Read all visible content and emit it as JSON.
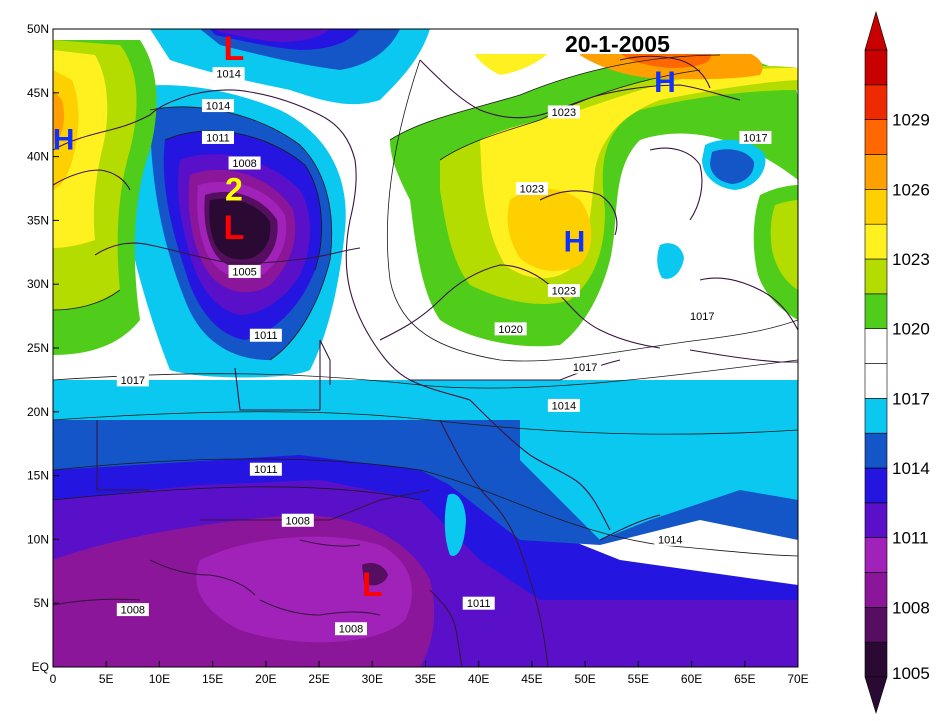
{
  "title": "20-1-2005",
  "x_ticks": [
    "0",
    "5E",
    "10E",
    "15E",
    "20E",
    "25E",
    "30E",
    "35E",
    "40E",
    "45E",
    "50E",
    "55E",
    "60E",
    "65E",
    "70E"
  ],
  "y_ticks": [
    "EQ",
    "5N",
    "10N",
    "15N",
    "20N",
    "25N",
    "30N",
    "35N",
    "40N",
    "45N",
    "50N"
  ],
  "colorbar": {
    "labels": [
      "1005",
      "1008",
      "1011",
      "1014",
      "1017",
      "1020",
      "1023",
      "1026",
      "1029"
    ],
    "colors": [
      "#2a0a32",
      "#560e60",
      "#8c169a",
      "#a022b8",
      "#5a10c8",
      "#2416e0",
      "#1456c8",
      "#0ac8ef",
      "#ffffff",
      "#ffffff",
      "#50cc1a",
      "#b4dc00",
      "#fff020",
      "#ffd000",
      "#ffa000",
      "#ff6800",
      "#f02a00",
      "#c80000"
    ]
  },
  "contour_labels": [
    {
      "text": "1014",
      "lon": 16.5,
      "lat": 46.5
    },
    {
      "text": "1014",
      "lon": 15.5,
      "lat": 44
    },
    {
      "text": "1011",
      "lon": 15.5,
      "lat": 41.5
    },
    {
      "text": "1008",
      "lon": 18,
      "lat": 39.5
    },
    {
      "text": "1005",
      "lon": 18,
      "lat": 31
    },
    {
      "text": "1011",
      "lon": 20,
      "lat": 26
    },
    {
      "text": "1017",
      "lon": 7.5,
      "lat": 22.5
    },
    {
      "text": "1011",
      "lon": 20,
      "lat": 15.5
    },
    {
      "text": "1008",
      "lon": 23,
      "lat": 11.5
    },
    {
      "text": "1008",
      "lon": 7.5,
      "lat": 4.5
    },
    {
      "text": "1008",
      "lon": 28,
      "lat": 3
    },
    {
      "text": "1011",
      "lon": 40,
      "lat": 5
    },
    {
      "text": "1014",
      "lon": 48,
      "lat": 20.5
    },
    {
      "text": "1014",
      "lon": 58,
      "lat": 10
    },
    {
      "text": "1017",
      "lon": 50,
      "lat": 23.5
    },
    {
      "text": "1017",
      "lon": 61,
      "lat": 27.5
    },
    {
      "text": "1020",
      "lon": 43,
      "lat": 26.5
    },
    {
      "text": "1023",
      "lon": 48,
      "lat": 29.5
    },
    {
      "text": "1023",
      "lon": 45,
      "lat": 37.5
    },
    {
      "text": "1023",
      "lon": 48,
      "lat": 43.5
    },
    {
      "text": "1017",
      "lon": 66,
      "lat": 41.5
    }
  ],
  "systems": [
    {
      "type": "L",
      "label": "L",
      "lon": 17,
      "lat": 48.5
    },
    {
      "type": "L",
      "label": "L",
      "lon": 17,
      "lat": 34.5
    },
    {
      "type": "L",
      "label": "L",
      "lon": 30,
      "lat": 6.5
    },
    {
      "type": "H",
      "label": "H",
      "lon": 1,
      "lat": 41.5
    },
    {
      "type": "H",
      "label": "H",
      "lon": 49,
      "lat": 33.5
    },
    {
      "type": "H",
      "label": "H",
      "lon": 57.5,
      "lat": 46
    },
    {
      "type": "num",
      "label": "2",
      "lon": 17,
      "lat": 37.5
    }
  ]
}
